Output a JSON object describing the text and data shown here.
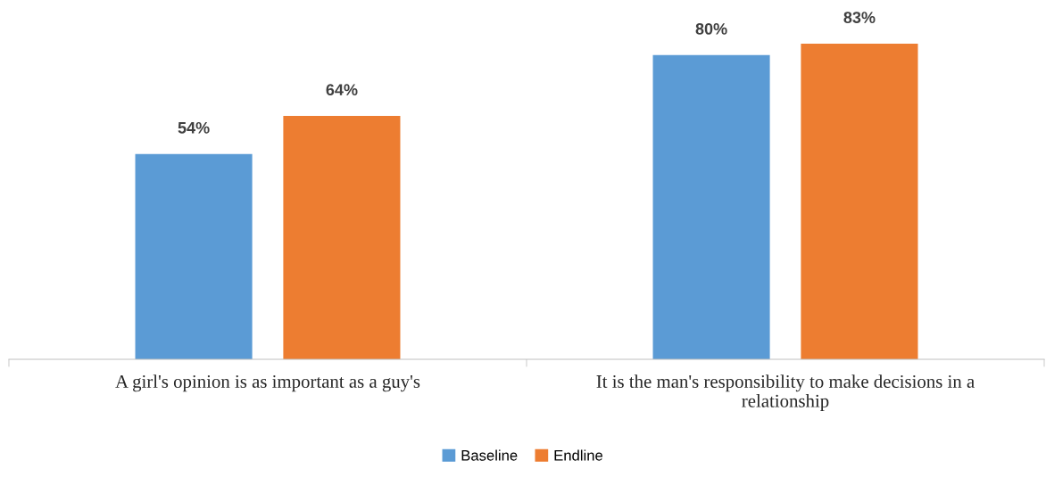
{
  "chart_data": {
    "type": "bar",
    "categories": [
      "A girl's opinion is as important as a guy's",
      "It is the man's responsibility to make decisions in a relationship"
    ],
    "series": [
      {
        "name": "Baseline",
        "color": "#5b9bd5",
        "values": [
          54,
          80
        ],
        "value_labels": [
          "54%",
          "80%"
        ]
      },
      {
        "name": "Endline",
        "color": "#ed7d31",
        "values": [
          64,
          83
        ],
        "value_labels": [
          "64%",
          "83%"
        ]
      }
    ],
    "tick_labels": "x",
    "grid": false,
    "legend": "bottom"
  }
}
